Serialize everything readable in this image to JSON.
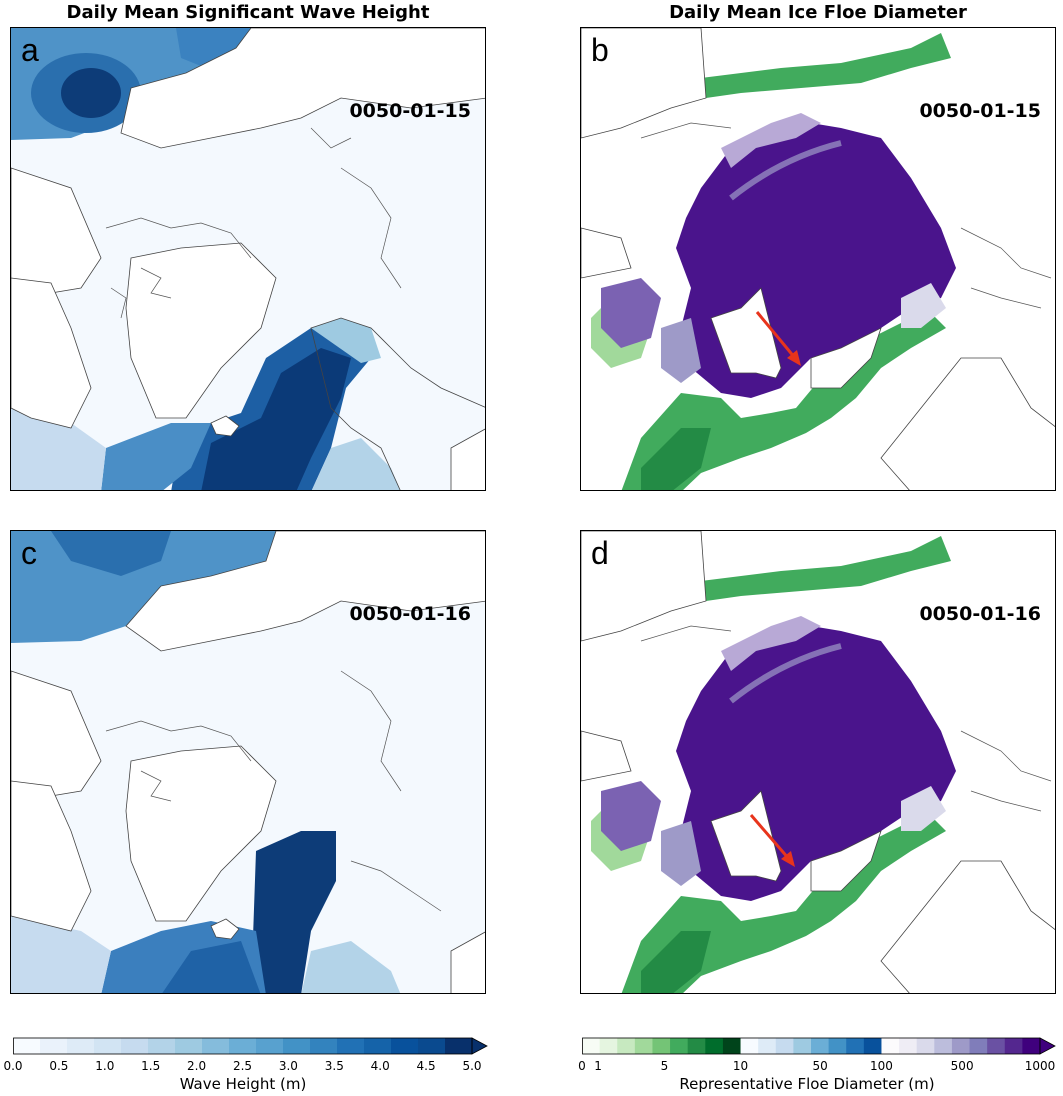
{
  "titles": {
    "left": "Daily Mean Significant Wave Height",
    "right": "Daily Mean Ice Floe Diameter"
  },
  "panels": {
    "a": {
      "letter": "a",
      "date": "0050-01-15",
      "variable": "wave-height"
    },
    "b": {
      "letter": "b",
      "date": "0050-01-15",
      "variable": "floe-diameter"
    },
    "c": {
      "letter": "c",
      "date": "0050-01-16",
      "variable": "wave-height"
    },
    "d": {
      "letter": "d",
      "date": "0050-01-16",
      "variable": "floe-diameter"
    }
  },
  "colorbars": {
    "wave": {
      "label": "Wave Height (m)",
      "ticks": [
        "0.0",
        "0.5",
        "1.0",
        "1.5",
        "2.0",
        "2.5",
        "3.0",
        "3.5",
        "4.0",
        "4.5",
        "5.0"
      ],
      "extend": "max",
      "colors": [
        "#f7fbff",
        "#eaf2fb",
        "#deebf7",
        "#d2e4f3",
        "#c6dbef",
        "#b3d3e8",
        "#9ecae1",
        "#85bcdc",
        "#6baed6",
        "#58a1cf",
        "#4292c6",
        "#3383be",
        "#2171b5",
        "#1563a9",
        "#08519c",
        "#0a4a8f",
        "#08306b"
      ]
    },
    "floe": {
      "label": "Representative Floe Diameter (m)",
      "ticks": [
        "0",
        "1",
        "5",
        "10",
        "50",
        "100",
        "500",
        "1000"
      ],
      "extend": "max",
      "colors": [
        "#f7fcf5",
        "#e5f5e0",
        "#c7e9c0",
        "#a1d99b",
        "#74c476",
        "#41ab5d",
        "#238b45",
        "#006d2c",
        "#00441b",
        "#f7fbff",
        "#deebf7",
        "#c6dbef",
        "#9ecae1",
        "#6baed6",
        "#4292c6",
        "#2171b5",
        "#08519c",
        "#fcfbfd",
        "#efedf5",
        "#dadaeb",
        "#bcbddc",
        "#9e9ac8",
        "#807dba",
        "#6a51a3",
        "#54278f",
        "#3f007d"
      ]
    }
  },
  "colors": {
    "wave_high": "#08306b",
    "wave_mid": "#4292c6",
    "wave_low": "#f4f9fe",
    "floe_purple": "#4a148c",
    "floe_green": "#41ab5d",
    "arrow": "#e8341c"
  }
}
